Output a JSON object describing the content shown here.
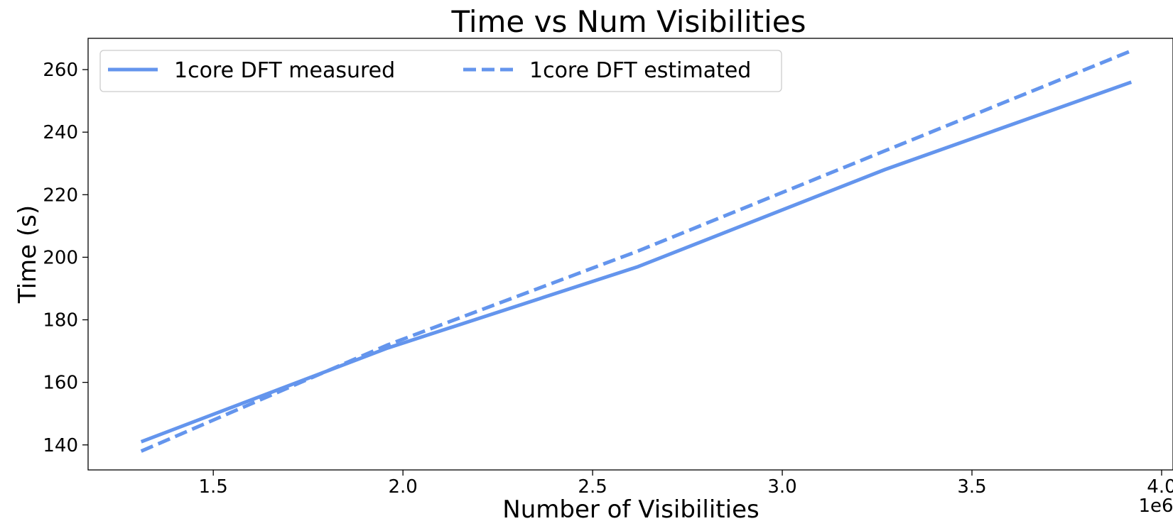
{
  "chart_data": {
    "type": "line",
    "title": "Time vs Num Visibilities",
    "xlabel": "Number of Visibilities",
    "ylabel": "Time (s)",
    "x_offset_label": "1e6",
    "x": [
      1.31,
      1.96,
      2.62,
      3.27,
      3.92
    ],
    "xlim": [
      1.17,
      4.03
    ],
    "ylim": [
      132,
      270
    ],
    "xticks": [
      1.5,
      2.0,
      2.5,
      3.0,
      3.5,
      4.0
    ],
    "xtick_labels": [
      "1.5",
      "2.0",
      "2.5",
      "3.0",
      "3.5",
      "4.0"
    ],
    "yticks": [
      140,
      160,
      180,
      200,
      220,
      240,
      260
    ],
    "ytick_labels": [
      "140",
      "160",
      "180",
      "200",
      "220",
      "240",
      "260"
    ],
    "grid": false,
    "legend_position": "top-left",
    "series": [
      {
        "name": "1core DFT measured",
        "style": "solid",
        "color": "#6495ED",
        "values": [
          141,
          171,
          197,
          228,
          256
        ]
      },
      {
        "name": "1core DFT estimated",
        "style": "dashed",
        "color": "#6495ED",
        "values": [
          138,
          172,
          202,
          234,
          266
        ]
      }
    ]
  }
}
